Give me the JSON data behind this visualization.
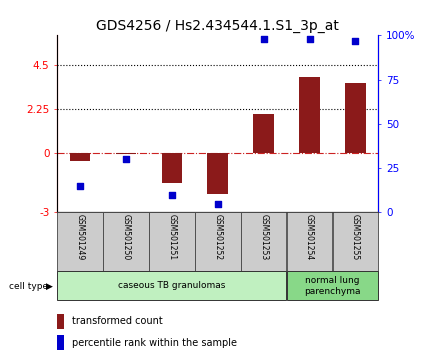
{
  "title": "GDS4256 / Hs2.434544.1.S1_3p_at",
  "samples": [
    "GSM501249",
    "GSM501250",
    "GSM501251",
    "GSM501252",
    "GSM501253",
    "GSM501254",
    "GSM501255"
  ],
  "transformed_count": [
    -0.38,
    -0.05,
    -1.5,
    -2.05,
    2.0,
    3.9,
    3.6
  ],
  "percentile_rank": [
    15,
    30,
    10,
    5,
    98,
    98,
    97
  ],
  "ylim_left": [
    -3,
    6
  ],
  "ylim_right": [
    0,
    100
  ],
  "left_yticks": [
    -3,
    0,
    2.25,
    4.5
  ],
  "right_yticks": [
    0,
    25,
    50,
    75,
    100
  ],
  "right_ytick_labels": [
    "0",
    "25",
    "50",
    "75",
    "100%"
  ],
  "dotted_lines": [
    2.25,
    4.5
  ],
  "bar_color": "#8B1A1A",
  "dot_color": "#0000CC",
  "title_fontsize": 10,
  "cell_type_groups": [
    {
      "label": "caseous TB granulomas",
      "start": 0,
      "end": 5,
      "color": "#C0F0C0"
    },
    {
      "label": "normal lung\nparenchyma",
      "start": 5,
      "end": 7,
      "color": "#88D888"
    }
  ],
  "cell_type_label": "cell type",
  "legend_items": [
    {
      "color": "#8B1A1A",
      "label": "transformed count"
    },
    {
      "color": "#0000CC",
      "label": "percentile rank within the sample"
    }
  ],
  "sample_box_color": "#CCCCCC",
  "n_samples": 7
}
